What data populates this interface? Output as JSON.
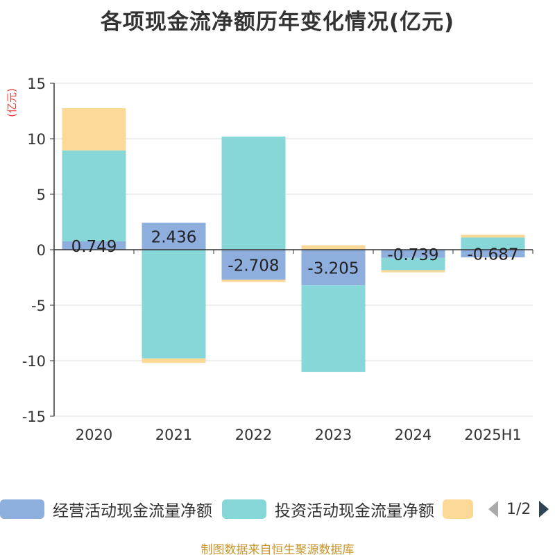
{
  "title": "各项现金流净额历年变化情况(亿元)",
  "source": "制图数据来自恒生聚源数据库",
  "legend_pager": "1/2",
  "chart_data": {
    "type": "bar",
    "stacked": true,
    "ylabel": "(亿元)",
    "ylim": [
      -15,
      15
    ],
    "yticks": [
      15,
      10,
      5,
      0,
      -5,
      -10,
      -15
    ],
    "grid": true,
    "legend_position": "bottom",
    "categories": [
      "2020",
      "2021",
      "2022",
      "2023",
      "2024",
      "2025H1"
    ],
    "series": [
      {
        "name": "经营活动现金流量净额",
        "color": "#8eaede",
        "values": [
          0.749,
          2.436,
          -2.708,
          -3.205,
          -0.739,
          -0.687
        ],
        "labels": [
          "0.749",
          "2.436",
          "-2.708",
          "-3.205",
          "-0.739",
          "-0.687"
        ]
      },
      {
        "name": "投资活动现金流量净额",
        "color": "#87d6d8",
        "values": [
          8.2,
          -9.8,
          10.2,
          -7.8,
          -1.1,
          1.1
        ]
      },
      {
        "name": "",
        "color": "#fdd998",
        "values": [
          3.8,
          -0.4,
          -0.2,
          0.4,
          -0.2,
          0.25
        ]
      }
    ]
  }
}
